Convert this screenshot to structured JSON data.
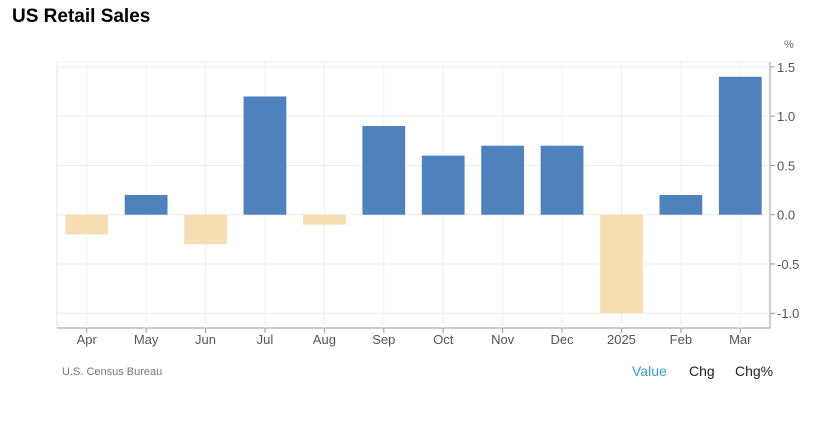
{
  "chart_data": {
    "type": "bar",
    "title": "US Retail Sales",
    "unit": "%",
    "categories": [
      "Apr",
      "May",
      "Jun",
      "Jul",
      "Aug",
      "Sep",
      "Oct",
      "Nov",
      "Dec",
      "2025",
      "Feb",
      "Mar"
    ],
    "values": [
      -0.2,
      0.2,
      -0.3,
      1.2,
      -0.1,
      0.9,
      0.6,
      0.7,
      0.7,
      -1.0,
      0.2,
      1.4
    ],
    "ylim": [
      -1.15,
      1.55
    ],
    "yticks": [
      "1.5",
      "1.0",
      "0.5",
      "0.0",
      "-0.5",
      "-1.0"
    ],
    "ytick_values": [
      1.5,
      1.0,
      0.5,
      0.0,
      -0.5,
      -1.0
    ],
    "positive_color": "#4f81bd",
    "negative_color": "#f5deb3",
    "grid": true
  },
  "footer": {
    "source": "U.S. Census Bureau",
    "toggles": [
      "Value",
      "Chg",
      "Chg%"
    ]
  }
}
